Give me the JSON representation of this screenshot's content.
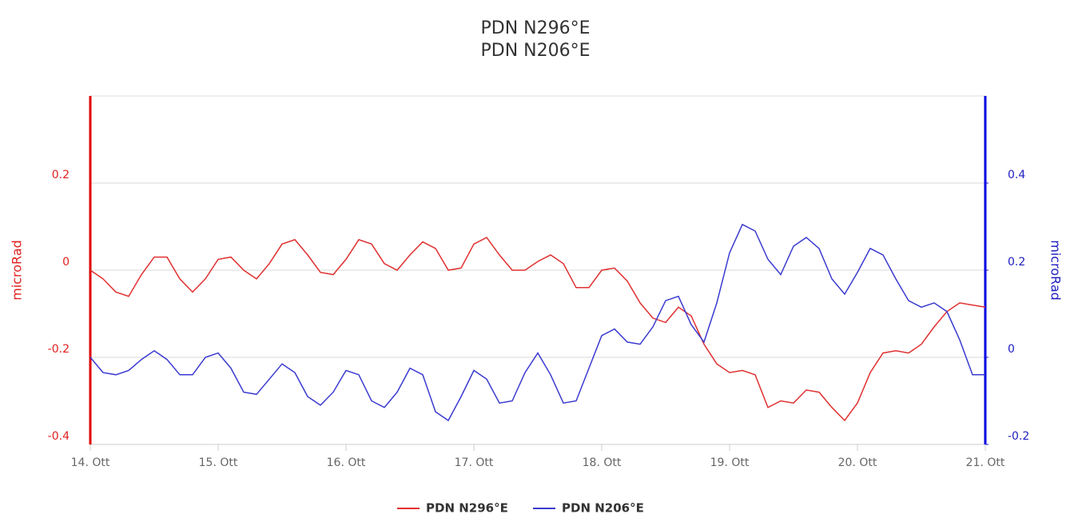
{
  "chart_data": {
    "type": "line",
    "title": [
      "PDN N296°E",
      "PDN N206°E"
    ],
    "x": [
      14,
      14.1,
      14.2,
      14.3,
      14.4,
      14.5,
      14.6,
      14.7,
      14.8,
      14.9,
      15,
      15.1,
      15.2,
      15.3,
      15.4,
      15.5,
      15.6,
      15.7,
      15.8,
      15.9,
      16,
      16.1,
      16.2,
      16.3,
      16.4,
      16.5,
      16.6,
      16.7,
      16.8,
      16.9,
      17,
      17.1,
      17.2,
      17.3,
      17.4,
      17.5,
      17.6,
      17.7,
      17.8,
      17.9,
      18,
      18.1,
      18.2,
      18.3,
      18.4,
      18.5,
      18.6,
      18.7,
      18.8,
      18.9,
      19,
      19.1,
      19.2,
      19.3,
      19.4,
      19.5,
      19.6,
      19.7,
      19.8,
      19.9,
      20,
      20.1,
      20.2,
      20.3,
      20.4,
      20.5,
      20.6,
      20.7,
      20.8,
      20.9,
      21
    ],
    "xlim": [
      14,
      21
    ],
    "xticks": [
      {
        "value": 14,
        "label": "14. Ott"
      },
      {
        "value": 15,
        "label": "15. Ott"
      },
      {
        "value": 16,
        "label": "16. Ott"
      },
      {
        "value": 17,
        "label": "17. Ott"
      },
      {
        "value": 18,
        "label": "18. Ott"
      },
      {
        "value": 19,
        "label": "19. Ott"
      },
      {
        "value": 20,
        "label": "20. Ott"
      },
      {
        "value": 21,
        "label": "21. Ott"
      }
    ],
    "ylabel": "microRad",
    "y2label": "microRad",
    "ylim": [
      -0.4,
      0.4
    ],
    "yticks": [
      -0.4,
      -0.2,
      0,
      0.2
    ],
    "y2lim": [
      -0.2,
      0.6
    ],
    "y2ticks": [
      -0.2,
      0,
      0.2,
      0.4
    ],
    "grid": true,
    "legend": "bottom",
    "series": [
      {
        "name": "PDN N296°E",
        "color": "#e03030",
        "axis": "y",
        "values": [
          0,
          -0.02,
          -0.05,
          -0.06,
          -0.01,
          0.03,
          0.03,
          -0.02,
          -0.05,
          -0.02,
          0.025,
          0.03,
          0,
          -0.02,
          0.015,
          0.06,
          0.07,
          0.035,
          -0.005,
          -0.01,
          0.025,
          0.07,
          0.06,
          0.015,
          0,
          0.035,
          0.065,
          0.05,
          0,
          0.005,
          0.06,
          0.075,
          0.035,
          0,
          0,
          0.02,
          0.035,
          0.015,
          -0.04,
          -0.04,
          0,
          0.005,
          -0.025,
          -0.075,
          -0.11,
          -0.12,
          -0.085,
          -0.105,
          -0.17,
          -0.215,
          -0.235,
          -0.23,
          -0.24,
          -0.315,
          -0.3,
          -0.305,
          -0.275,
          -0.28,
          -0.315,
          -0.345,
          -0.305,
          -0.235,
          -0.19,
          -0.185,
          -0.19,
          -0.17,
          -0.13,
          -0.095,
          -0.075,
          -0.08,
          -0.085
        ]
      },
      {
        "name": "PDN N206°E",
        "color": "#3a3ad0",
        "axis": "y2",
        "values": [
          0,
          -0.035,
          -0.04,
          -0.03,
          -0.005,
          0.015,
          -0.005,
          -0.04,
          -0.04,
          0,
          0.01,
          -0.025,
          -0.08,
          -0.085,
          -0.05,
          -0.015,
          -0.035,
          -0.09,
          -0.11,
          -0.08,
          -0.03,
          -0.04,
          -0.1,
          -0.115,
          -0.08,
          -0.025,
          -0.04,
          -0.125,
          -0.145,
          -0.09,
          -0.03,
          -0.05,
          -0.105,
          -0.1,
          -0.035,
          0.01,
          -0.04,
          -0.105,
          -0.1,
          -0.025,
          0.05,
          0.065,
          0.035,
          0.03,
          0.07,
          0.13,
          0.14,
          0.075,
          0.035,
          0.125,
          0.24,
          0.305,
          0.29,
          0.225,
          0.19,
          0.255,
          0.275,
          0.25,
          0.18,
          0.145,
          0.195,
          0.25,
          0.235,
          0.18,
          0.13,
          0.115,
          0.125,
          0.105,
          0.04,
          -0.04,
          -0.04
        ]
      }
    ]
  }
}
